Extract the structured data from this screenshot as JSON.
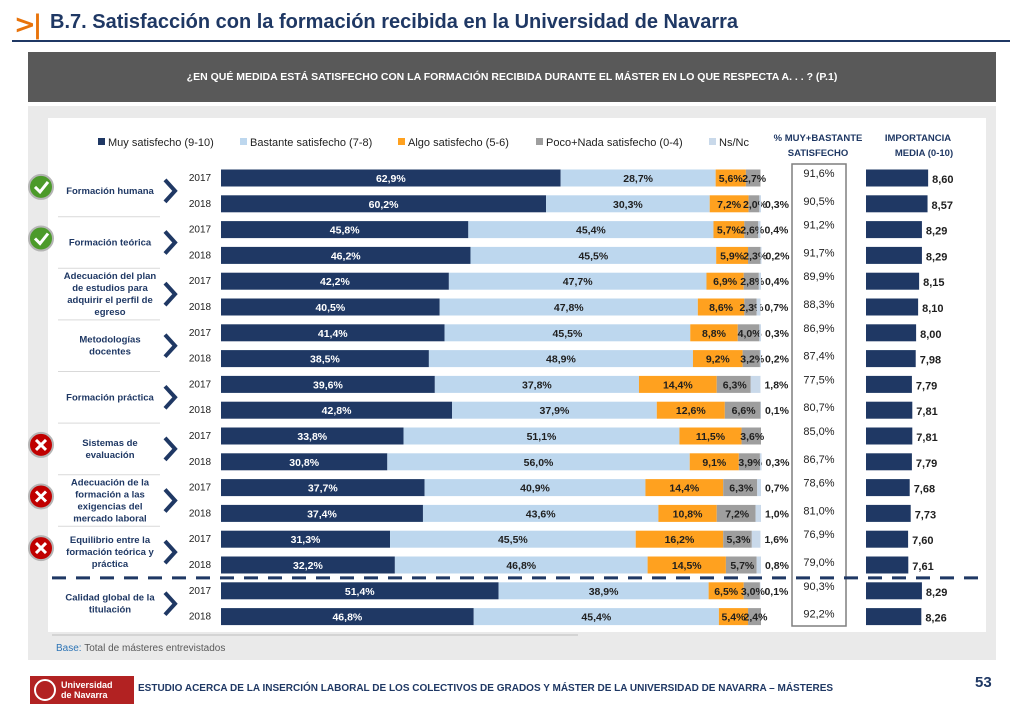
{
  "header": {
    "title": "B.7. Satisfacción con la formación recibida en la Universidad de Navarra",
    "question": "¿EN QUÉ MEDIDA ESTÁ SATISFECHO CON LA FORMACIÓN RECIBIDA DURANTE EL MÁSTER EN LO QUE RESPECTA A. . . ? (P.1)"
  },
  "colors": {
    "navy": "#1f3864",
    "light_blue": "#bdd7ee",
    "orange": "#ffa11f",
    "gray": "#9e9e9e",
    "nsnc": "#c9d9ea",
    "check_green": "#4c9a2a",
    "cross_red": "#c00000",
    "accent": "#e8730a"
  },
  "chart_data": {
    "type": "bar",
    "stacked": true,
    "orientation": "horizontal",
    "legend": [
      "Muy satisfecho (9-10)",
      "Bastante satisfecho (7-8)",
      "Algo satisfecho (5-6)",
      "Poco+Nada satisfecho (0-4)",
      "Ns/Nc"
    ],
    "pct_header": [
      "% MUY+BASTANTE",
      "SATISFECHO"
    ],
    "imp_header": [
      "IMPORTANCIA",
      "MEDIA (0-10)"
    ],
    "xlim": [
      0,
      100
    ],
    "imp_lim": [
      0,
      10
    ],
    "groups": [
      {
        "label": [
          "Formación humana"
        ],
        "icon": "check",
        "rows": [
          {
            "year": "2017",
            "values": [
              62.9,
              28.7,
              5.6,
              2.7,
              0.0
            ],
            "labels": [
              "62,9%",
              "28,7%",
              "5,6%",
              "2,7%",
              ""
            ],
            "pct": "91,6%",
            "imp": 8.6,
            "imp_label": "8,60"
          },
          {
            "year": "2018",
            "values": [
              60.2,
              30.3,
              7.2,
              2.0,
              0.3
            ],
            "labels": [
              "60,2%",
              "30,3%",
              "7,2%",
              "2,0%",
              "0,3%"
            ],
            "pct": "90,5%",
            "imp": 8.57,
            "imp_label": "8,57"
          }
        ]
      },
      {
        "label": [
          "Formación teórica"
        ],
        "icon": "check",
        "rows": [
          {
            "year": "2017",
            "values": [
              45.8,
              45.4,
              5.7,
              2.6,
              0.4
            ],
            "labels": [
              "45,8%",
              "45,4%",
              "5,7%",
              "2,6%",
              "0,4%"
            ],
            "pct": "91,2%",
            "imp": 8.29,
            "imp_label": "8,29"
          },
          {
            "year": "2018",
            "values": [
              46.2,
              45.5,
              5.9,
              2.3,
              0.2
            ],
            "labels": [
              "46,2%",
              "45,5%",
              "5,9%",
              "2,3%",
              "0,2%"
            ],
            "pct": "91,7%",
            "imp": 8.29,
            "imp_label": "8,29"
          }
        ]
      },
      {
        "label": [
          "Adecuación del plan",
          "de estudios para",
          "adquirir el perfil de",
          "egreso"
        ],
        "icon": "",
        "rows": [
          {
            "year": "2017",
            "values": [
              42.2,
              47.7,
              6.9,
              2.8,
              0.4
            ],
            "labels": [
              "42,2%",
              "47,7%",
              "6,9%",
              "2,8%",
              "0,4%"
            ],
            "pct": "89,9%",
            "imp": 8.15,
            "imp_label": "8,15"
          },
          {
            "year": "2018",
            "values": [
              40.5,
              47.8,
              8.6,
              2.3,
              0.7
            ],
            "labels": [
              "40,5%",
              "47,8%",
              "8,6%",
              "2,3%",
              "0,7%"
            ],
            "pct": "88,3%",
            "imp": 8.1,
            "imp_label": "8,10"
          }
        ]
      },
      {
        "label": [
          "Metodologías",
          "docentes"
        ],
        "icon": "",
        "rows": [
          {
            "year": "2017",
            "values": [
              41.4,
              45.5,
              8.8,
              4.0,
              0.3
            ],
            "labels": [
              "41,4%",
              "45,5%",
              "8,8%",
              "4,0%",
              "0,3%"
            ],
            "pct": "86,9%",
            "imp": 8.0,
            "imp_label": "8,00"
          },
          {
            "year": "2018",
            "values": [
              38.5,
              48.9,
              9.2,
              3.2,
              0.2
            ],
            "labels": [
              "38,5%",
              "48,9%",
              "9,2%",
              "3,2%",
              "0,2%"
            ],
            "pct": "87,4%",
            "imp": 7.98,
            "imp_label": "7,98"
          }
        ]
      },
      {
        "label": [
          "Formación práctica"
        ],
        "icon": "",
        "rows": [
          {
            "year": "2017",
            "values": [
              39.6,
              37.8,
              14.4,
              6.3,
              1.8
            ],
            "labels": [
              "39,6%",
              "37,8%",
              "14,4%",
              "6,3%",
              "1,8%"
            ],
            "pct": "77,5%",
            "imp": 7.79,
            "imp_label": "7,79"
          },
          {
            "year": "2018",
            "values": [
              42.8,
              37.9,
              12.6,
              6.6,
              0.1
            ],
            "labels": [
              "42,8%",
              "37,9%",
              "12,6%",
              "6,6%",
              "0,1%"
            ],
            "pct": "80,7%",
            "imp": 7.81,
            "imp_label": "7,81"
          }
        ]
      },
      {
        "label": [
          "Sistemas de",
          "evaluación"
        ],
        "icon": "cross",
        "rows": [
          {
            "year": "2017",
            "values": [
              33.8,
              51.1,
              11.5,
              3.6,
              0.0
            ],
            "labels": [
              "33,8%",
              "51,1%",
              "11,5%",
              "3,6%",
              ""
            ],
            "pct": "85,0%",
            "imp": 7.81,
            "imp_label": "7,81"
          },
          {
            "year": "2018",
            "values": [
              30.8,
              56.0,
              9.1,
              3.9,
              0.3
            ],
            "labels": [
              "30,8%",
              "56,0%",
              "9,1%",
              "3,9%",
              "0,3%"
            ],
            "pct": "86,7%",
            "imp": 7.79,
            "imp_label": "7,79"
          }
        ]
      },
      {
        "label": [
          "Adecuación de la",
          "formación a las",
          "exigencias del",
          "mercado laboral"
        ],
        "icon": "cross",
        "rows": [
          {
            "year": "2017",
            "values": [
              37.7,
              40.9,
              14.4,
              6.3,
              0.7
            ],
            "labels": [
              "37,7%",
              "40,9%",
              "14,4%",
              "6,3%",
              "0,7%"
            ],
            "pct": "78,6%",
            "imp": 7.68,
            "imp_label": "7,68"
          },
          {
            "year": "2018",
            "values": [
              37.4,
              43.6,
              10.8,
              7.2,
              1.0
            ],
            "labels": [
              "37,4%",
              "43,6%",
              "10,8%",
              "7,2%",
              "1,0%"
            ],
            "pct": "81,0%",
            "imp": 7.73,
            "imp_label": "7,73"
          }
        ]
      },
      {
        "label": [
          "Equilibrio entre la",
          "formación teórica y",
          "práctica"
        ],
        "icon": "cross",
        "rows": [
          {
            "year": "2017",
            "values": [
              31.3,
              45.5,
              16.2,
              5.3,
              1.6
            ],
            "labels": [
              "31,3%",
              "45,5%",
              "16,2%",
              "5,3%",
              "1,6%"
            ],
            "pct": "76,9%",
            "imp": 7.6,
            "imp_label": "7,60"
          },
          {
            "year": "2018",
            "values": [
              32.2,
              46.8,
              14.5,
              5.7,
              0.8
            ],
            "labels": [
              "32,2%",
              "46,8%",
              "14,5%",
              "5,7%",
              "0,8%"
            ],
            "pct": "79,0%",
            "imp": 7.61,
            "imp_label": "7,61"
          }
        ]
      },
      {
        "label": [
          "Calidad global de la",
          "titulación"
        ],
        "icon": "",
        "rows": [
          {
            "year": "2017",
            "values": [
              51.4,
              38.9,
              6.5,
              3.0,
              0.1
            ],
            "labels": [
              "51,4%",
              "38,9%",
              "6,5%",
              "3,0%",
              "0,1%"
            ],
            "pct": "90,3%",
            "imp": 8.29,
            "imp_label": "8,29"
          },
          {
            "year": "2018",
            "values": [
              46.8,
              45.4,
              5.4,
              2.4,
              0.0
            ],
            "labels": [
              "46,8%",
              "45,4%",
              "5,4%",
              "2,4%",
              ""
            ],
            "pct": "92,2%",
            "imp": 8.26,
            "imp_label": "8,26"
          }
        ]
      }
    ]
  },
  "footer": {
    "base_label": "Base:",
    "base_text": "Total de másteres entrevistados",
    "logo_line1": "Universidad",
    "logo_line2": "de Navarra",
    "study": "ESTUDIO ACERCA DE LA INSERCIÓN LABORAL DE LOS COLECTIVOS DE GRADOS Y MÁSTER DE LA UNIVERSIDAD DE NAVARRA – MÁSTERES",
    "page": "53"
  }
}
